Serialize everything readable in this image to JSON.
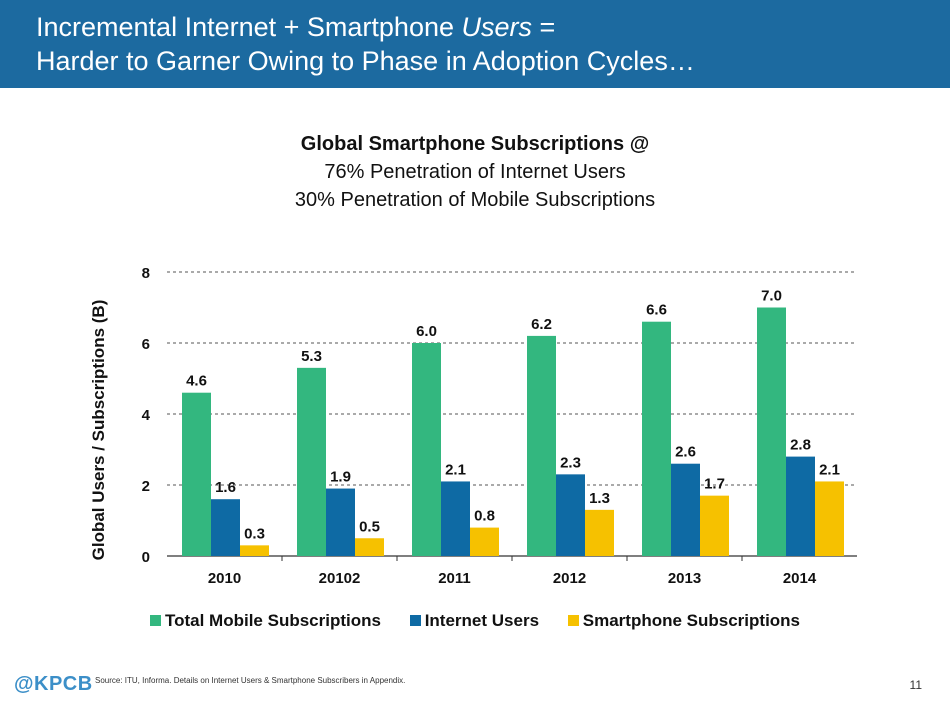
{
  "header": {
    "line1_prefix": "Incremental Internet + Smartphone ",
    "line1_italic": "Users",
    "line1_suffix": " =",
    "line2": "Harder to Garner Owing to Phase in Adoption Cycles…"
  },
  "chart_title": {
    "main": "Global Smartphone Subscriptions @",
    "sub1": "76% Penetration of Internet Users",
    "sub2": "30% Penetration of Mobile Subscriptions"
  },
  "chart_data": {
    "type": "bar",
    "title": "Global Smartphone Subscriptions @ 76% Penetration of Internet Users 30% Penetration of Mobile Subscriptions",
    "xlabel": "",
    "ylabel": "Global Users / Subscriptions (B)",
    "ylim": [
      0,
      8
    ],
    "yticks": [
      0,
      2,
      4,
      6,
      8
    ],
    "grid": true,
    "legend_position": "bottom",
    "categories": [
      "2010",
      "20102",
      "2011",
      "2012",
      "2013",
      "2014"
    ],
    "series": [
      {
        "name": "Total Mobile Subscriptions",
        "color": "#33b77f",
        "values": [
          4.6,
          5.3,
          6.0,
          6.2,
          6.6,
          7.0
        ],
        "labels": [
          "4.6",
          "5.3",
          "6.0",
          "6.2",
          "6.6",
          "7.0"
        ]
      },
      {
        "name": "Internet Users",
        "color": "#0e6aa4",
        "values": [
          1.6,
          1.9,
          2.1,
          2.3,
          2.6,
          2.8
        ],
        "labels": [
          "1.6",
          "1.9",
          "2.1",
          "2.3",
          "2.6",
          "2.8"
        ]
      },
      {
        "name": "Smartphone Subscriptions",
        "color": "#f6c100",
        "values": [
          0.3,
          0.5,
          0.8,
          1.3,
          1.7,
          2.1
        ],
        "labels": [
          "0.3",
          "0.5",
          "0.8",
          "1.3",
          "1.7",
          "2.1"
        ]
      }
    ]
  },
  "footer": {
    "logo": "@KPCB",
    "source": "Source: ITU, Informa. Details on Internet Users & Smartphone Subscribers in Appendix.",
    "page_number": "11"
  }
}
